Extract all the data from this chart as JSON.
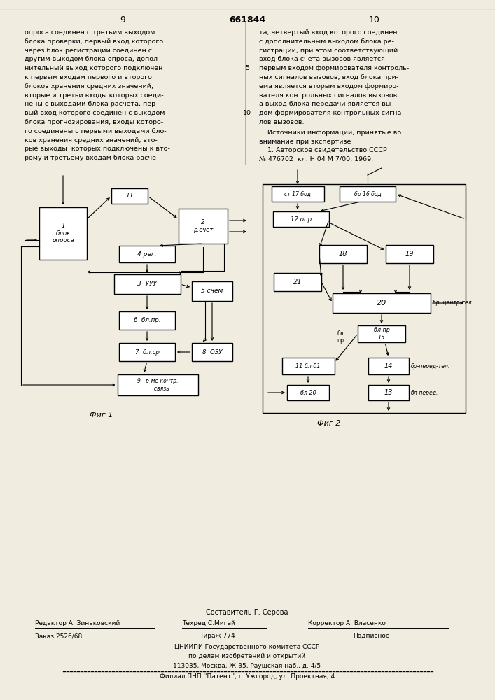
{
  "bg_color": "#f0ece0",
  "page_header": {
    "left_num": "9",
    "center_num": "661844",
    "right_num": "10"
  },
  "left_text_lines": [
    "опроса соединен с третьим выходом",
    "блока проверки, первый вход которого .",
    "через блок регистрации соединен с",
    "другим выходом блока опроса, допол-",
    "нительный выход которого подключен",
    "к первым входам первого и второго",
    "блоков хранения средних значений,",
    "вторые и третьи входы которых соеди-",
    "нены с выходами блока расчета, пер-",
    "вый вход которого соединен с выходом",
    "блока прогнозирования, входы которо-",
    "го соединены с первыми выходами бло-",
    "ков хранения средних значений, вто-",
    "рые выходы  которых подключены к вто-",
    "рому и третьему входам блока расче-"
  ],
  "right_text_lines": [
    "та, четвертый вход которого соединен",
    "с дополнительным выходом блока ре-",
    "гистрации, при этом соответствующий",
    "вход блока счета вызовов является",
    "первым входом формирователя контроль-",
    "ных сигналов вызовов, вход блока при-",
    "ема является вторым входом формиро-",
    "вателя контрольных сигналов вызовов,",
    "а выход блока передачи является вы-",
    "дом формирователя контрольных сигна-",
    "лов вызовов."
  ],
  "right_text_margin_nums": [
    "",
    "",
    "",
    "",
    "5",
    "",
    "",
    "",
    "",
    "10",
    "",
    ""
  ],
  "right_text_bottom_lines": [
    "    Источники информации, принятые во",
    "внимание при экспертизе",
    "    1. Авторское свидетельство СССР",
    "№ 476702  кл. Н 04 М 7/00, 1969."
  ],
  "fig1_label": "Фиг 1",
  "fig2_label": "Фиг 2",
  "footer_col1": "Составитель Г. Серова",
  "footer_editor": "Редактор А. Зиньковский",
  "footer_techred": "Техред С.Мигай",
  "footer_corrector": "Корректор А. Власенко",
  "footer_order": "Заказ 2526/68",
  "footer_tirazh": "Тираж 774",
  "footer_podpisnoe": "Подписное",
  "footer_org1": "ЦНИИПИ Государственного комитета СССР",
  "footer_org2": "по делам изобретений и открытий",
  "footer_addr": "113035, Москва, Ж-35, Раушская наб., д. 4/5",
  "footer_branch": "Филиал ПНП ''Патент'', г. Ужгород, ул. Проектная, 4"
}
